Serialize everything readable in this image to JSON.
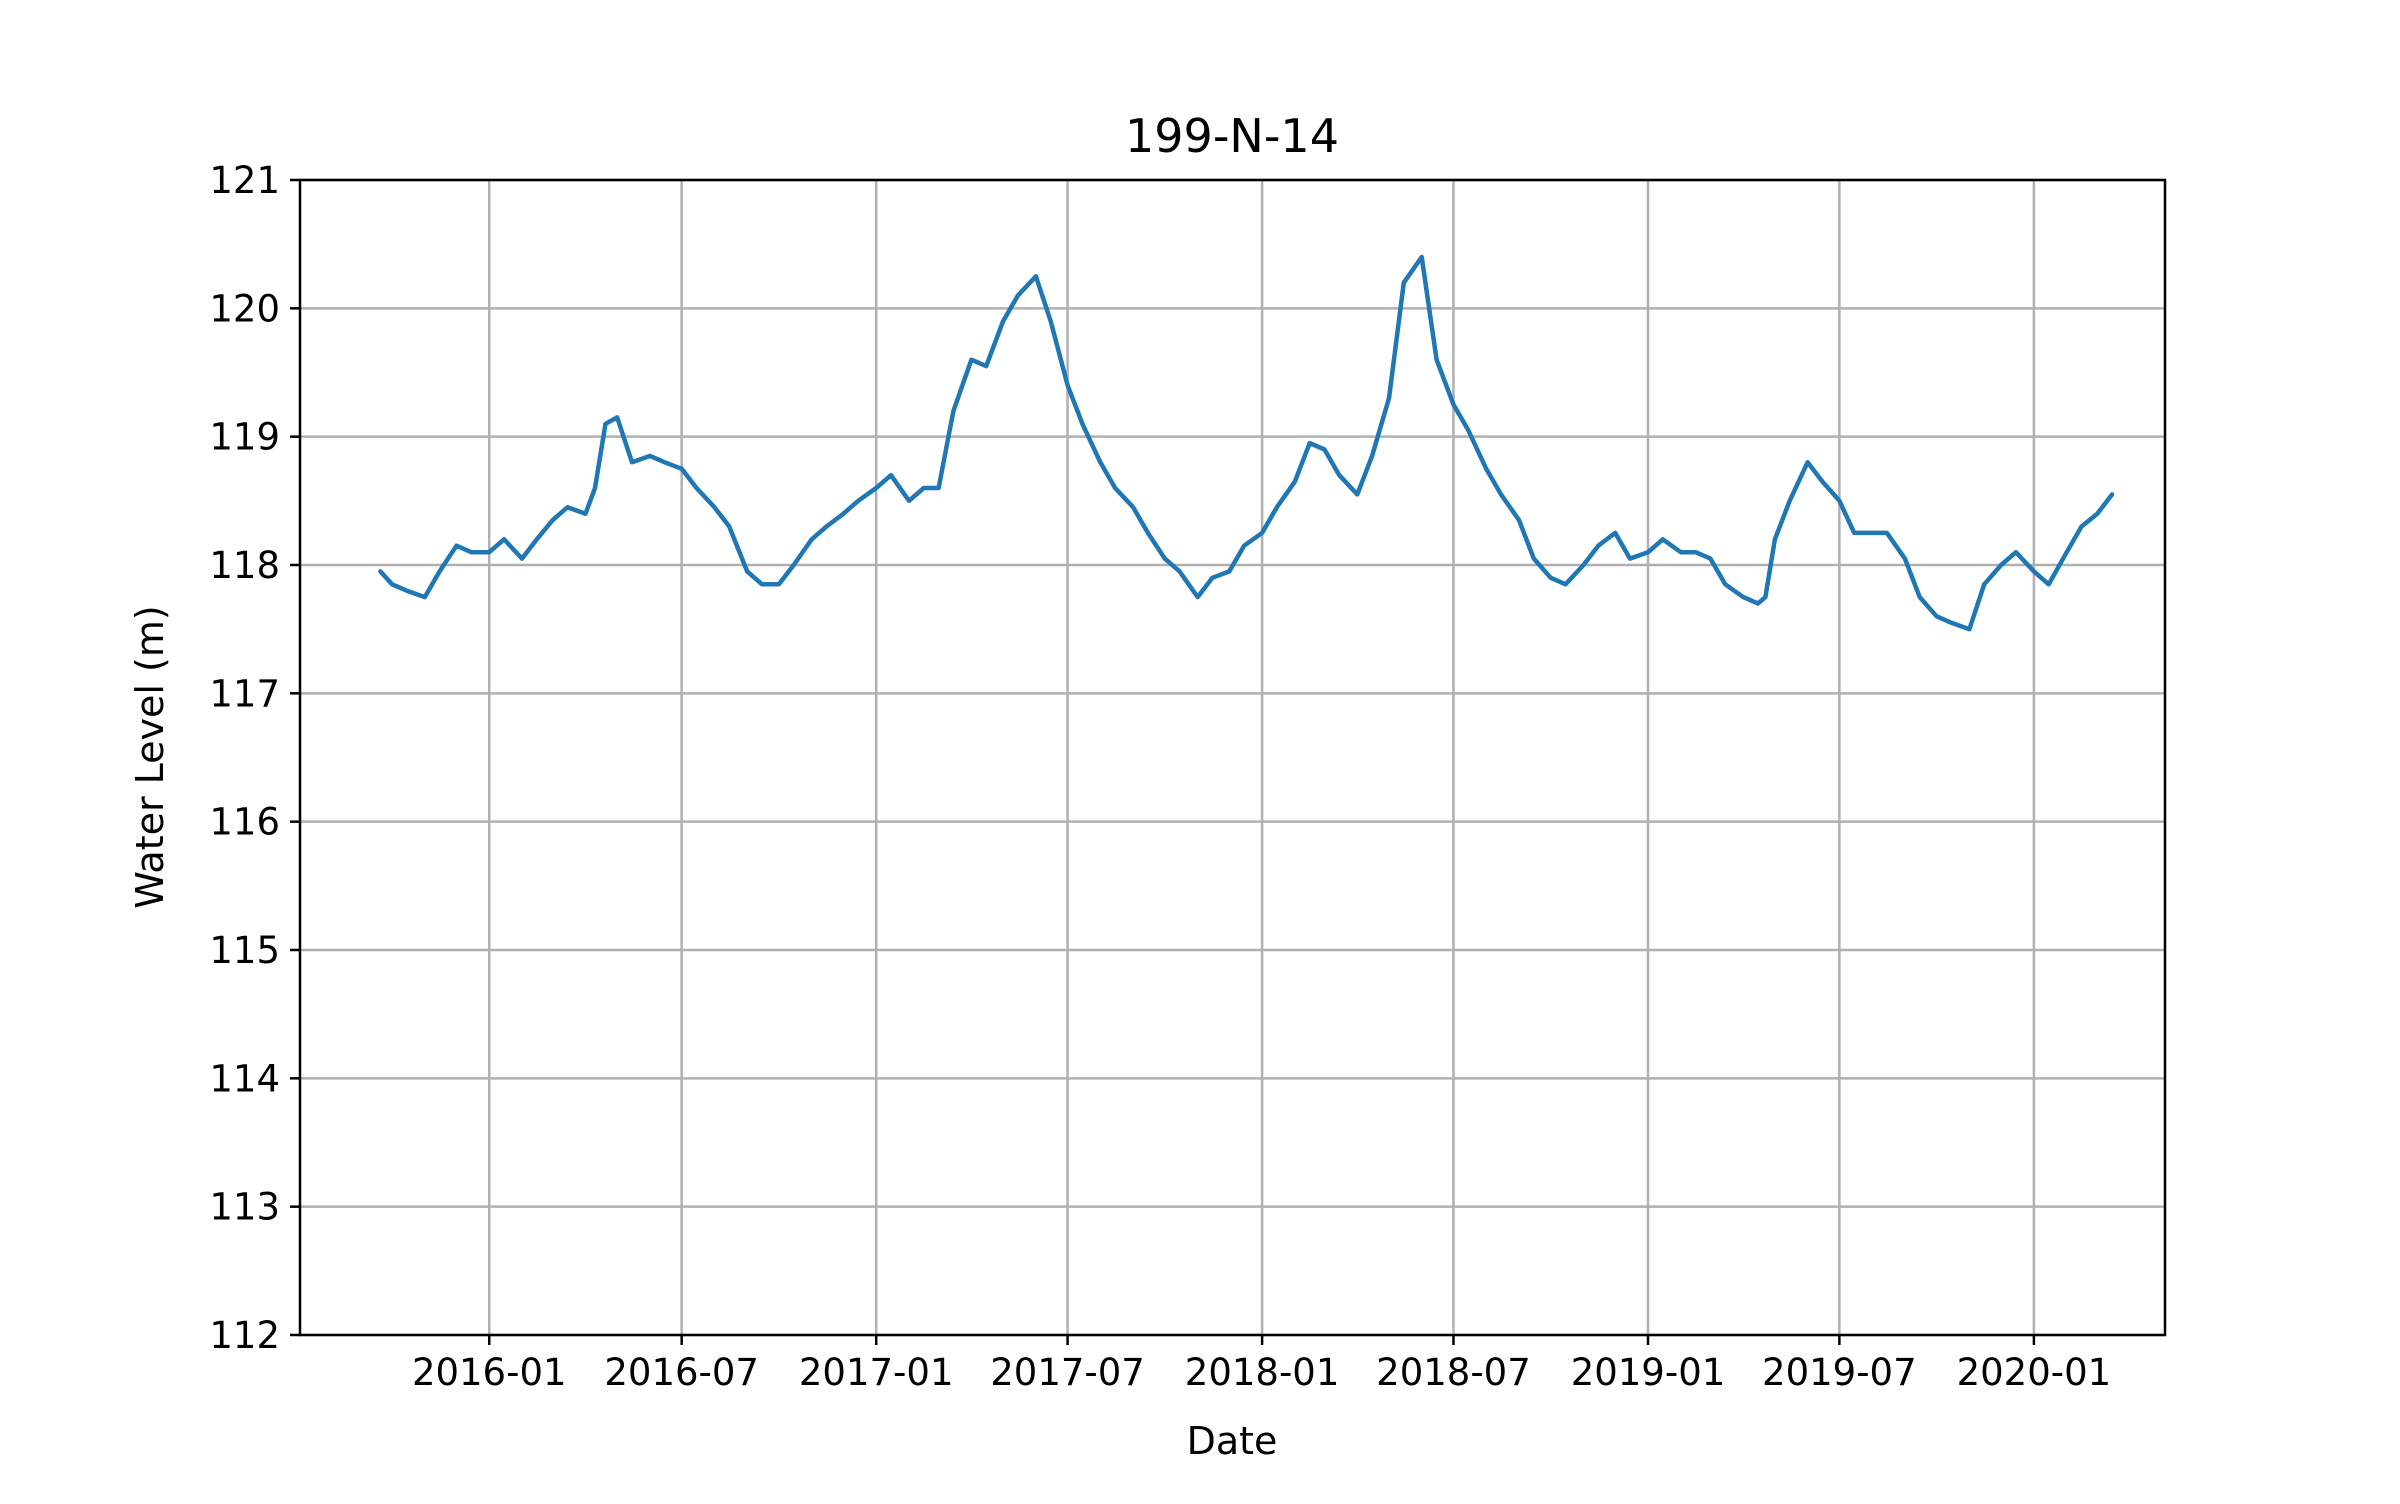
{
  "chart_data": {
    "type": "line",
    "title": "199-N-14",
    "xlabel": "Date",
    "ylabel": "Water Level (m)",
    "ylim": [
      112,
      121
    ],
    "xlim": [
      "2015-07-06",
      "2020-05-04"
    ],
    "grid": true,
    "x_ticks": [
      "2016-01",
      "2016-07",
      "2017-01",
      "2017-07",
      "2018-01",
      "2018-07",
      "2019-01",
      "2019-07",
      "2020-01"
    ],
    "y_ticks": [
      "112",
      "113",
      "114",
      "115",
      "116",
      "117",
      "118",
      "119",
      "120",
      "121"
    ],
    "series": [
      {
        "color": "#1f77b4",
        "x": [
          "2015-09-20",
          "2015-10-01",
          "2015-10-15",
          "2015-11-01",
          "2015-11-15",
          "2015-12-01",
          "2015-12-15",
          "2016-01-01",
          "2016-01-15",
          "2016-02-01",
          "2016-02-15",
          "2016-03-01",
          "2016-03-15",
          "2016-04-01",
          "2016-04-10",
          "2016-04-20",
          "2016-05-01",
          "2016-05-15",
          "2016-06-01",
          "2016-06-15",
          "2016-07-01",
          "2016-07-15",
          "2016-08-01",
          "2016-08-15",
          "2016-09-01",
          "2016-09-15",
          "2016-10-01",
          "2016-10-15",
          "2016-11-01",
          "2016-11-15",
          "2016-12-01",
          "2016-12-15",
          "2017-01-01",
          "2017-01-15",
          "2017-02-01",
          "2017-02-15",
          "2017-03-01",
          "2017-03-15",
          "2017-04-01",
          "2017-04-15",
          "2017-05-01",
          "2017-05-15",
          "2017-06-01",
          "2017-06-15",
          "2017-07-01",
          "2017-07-15",
          "2017-08-01",
          "2017-08-15",
          "2017-09-01",
          "2017-09-15",
          "2017-10-01",
          "2017-10-15",
          "2017-11-01",
          "2017-11-15",
          "2017-12-01",
          "2017-12-15",
          "2018-01-01",
          "2018-01-15",
          "2018-02-01",
          "2018-02-15",
          "2018-03-01",
          "2018-03-15",
          "2018-04-01",
          "2018-04-15",
          "2018-05-01",
          "2018-05-15",
          "2018-06-01",
          "2018-06-15",
          "2018-07-01",
          "2018-07-15",
          "2018-08-01",
          "2018-08-15",
          "2018-09-01",
          "2018-09-15",
          "2018-10-01",
          "2018-10-15",
          "2018-11-01",
          "2018-11-15",
          "2018-12-01",
          "2018-12-15",
          "2019-01-01",
          "2019-01-15",
          "2019-02-01",
          "2019-02-15",
          "2019-03-01",
          "2019-03-15",
          "2019-04-01",
          "2019-04-15",
          "2019-04-22",
          "2019-05-01",
          "2019-05-15",
          "2019-06-01",
          "2019-06-15",
          "2019-07-01",
          "2019-07-15",
          "2019-08-01",
          "2019-08-15",
          "2019-09-01",
          "2019-09-15",
          "2019-10-01",
          "2019-10-15",
          "2019-11-01",
          "2019-11-15",
          "2019-12-01",
          "2019-12-15",
          "2020-01-01",
          "2020-01-15",
          "2020-02-01",
          "2020-02-15",
          "2020-03-01",
          "2020-03-15"
        ],
        "values": [
          117.95,
          117.85,
          117.8,
          117.75,
          117.95,
          118.15,
          118.1,
          118.1,
          118.2,
          118.05,
          118.2,
          118.35,
          118.45,
          118.4,
          118.6,
          119.1,
          119.15,
          118.8,
          118.85,
          118.8,
          118.75,
          118.6,
          118.45,
          118.3,
          117.95,
          117.85,
          117.85,
          118.0,
          118.2,
          118.3,
          118.4,
          118.5,
          118.6,
          118.7,
          118.5,
          118.6,
          118.6,
          119.2,
          119.6,
          119.55,
          119.9,
          120.1,
          120.25,
          119.9,
          119.4,
          119.1,
          118.8,
          118.6,
          118.45,
          118.25,
          118.05,
          117.95,
          117.75,
          117.9,
          117.95,
          118.15,
          118.25,
          118.45,
          118.65,
          118.95,
          118.9,
          118.7,
          118.55,
          118.85,
          119.3,
          120.2,
          120.4,
          119.6,
          119.25,
          119.05,
          118.75,
          118.55,
          118.35,
          118.05,
          117.9,
          117.85,
          118.0,
          118.15,
          118.25,
          118.05,
          118.1,
          118.2,
          118.1,
          118.1,
          118.05,
          117.85,
          117.75,
          117.7,
          117.75,
          118.2,
          118.5,
          118.8,
          118.65,
          118.5,
          118.25,
          118.25,
          118.25,
          118.05,
          117.75,
          117.6,
          117.55,
          117.5,
          117.85,
          118.0,
          118.1,
          117.95,
          117.85,
          118.1,
          118.3,
          118.4,
          118.55
        ]
      }
    ]
  }
}
